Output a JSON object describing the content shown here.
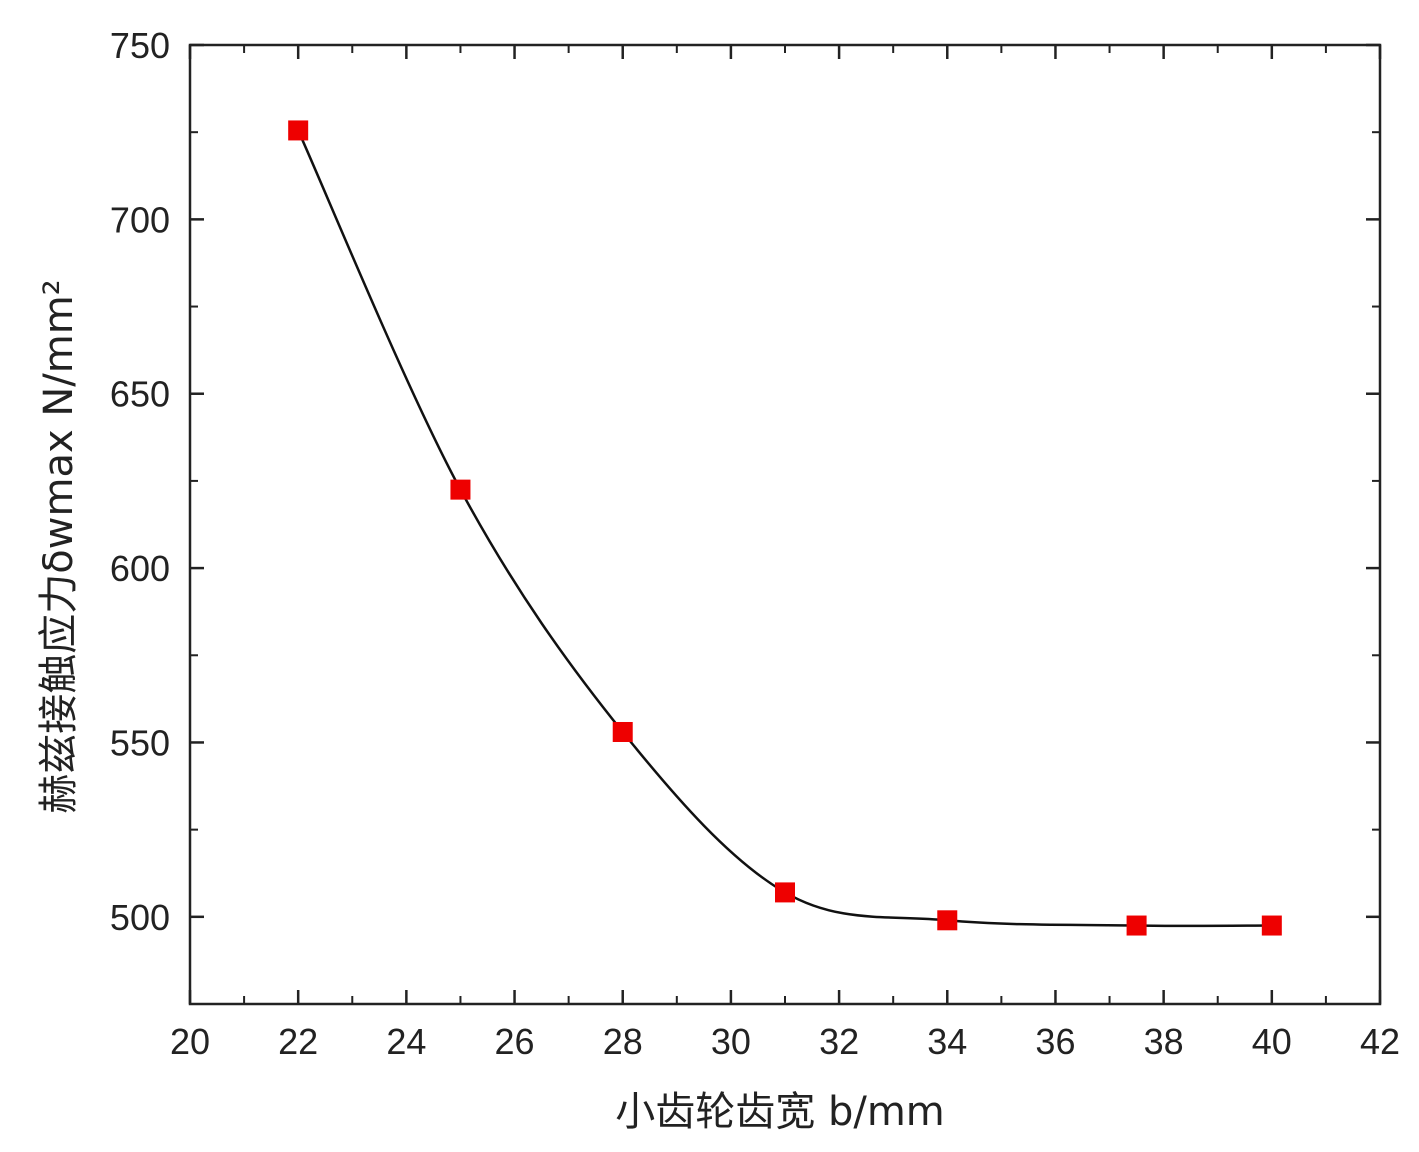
{
  "chart_data": {
    "type": "line",
    "title": "",
    "xlabel": "小齿轮齿宽 b/mm",
    "ylabel": "赫兹接触应力δwmax N/mm²",
    "xlim": [
      20,
      42
    ],
    "ylim": [
      475,
      750
    ],
    "xticks": [
      20,
      22,
      24,
      26,
      28,
      30,
      32,
      34,
      36,
      38,
      40,
      42
    ],
    "yticks": [
      500,
      550,
      600,
      650,
      700,
      750
    ],
    "grid": false,
    "legend": "none",
    "series": [
      {
        "x": [
          22,
          25,
          28,
          31,
          34,
          37.5,
          40
        ],
        "y": [
          725.5,
          622.5,
          553,
          507,
          499,
          497.5,
          497.5
        ],
        "line_color": "#111111",
        "marker": "square",
        "marker_color": "#ee0000"
      }
    ]
  }
}
